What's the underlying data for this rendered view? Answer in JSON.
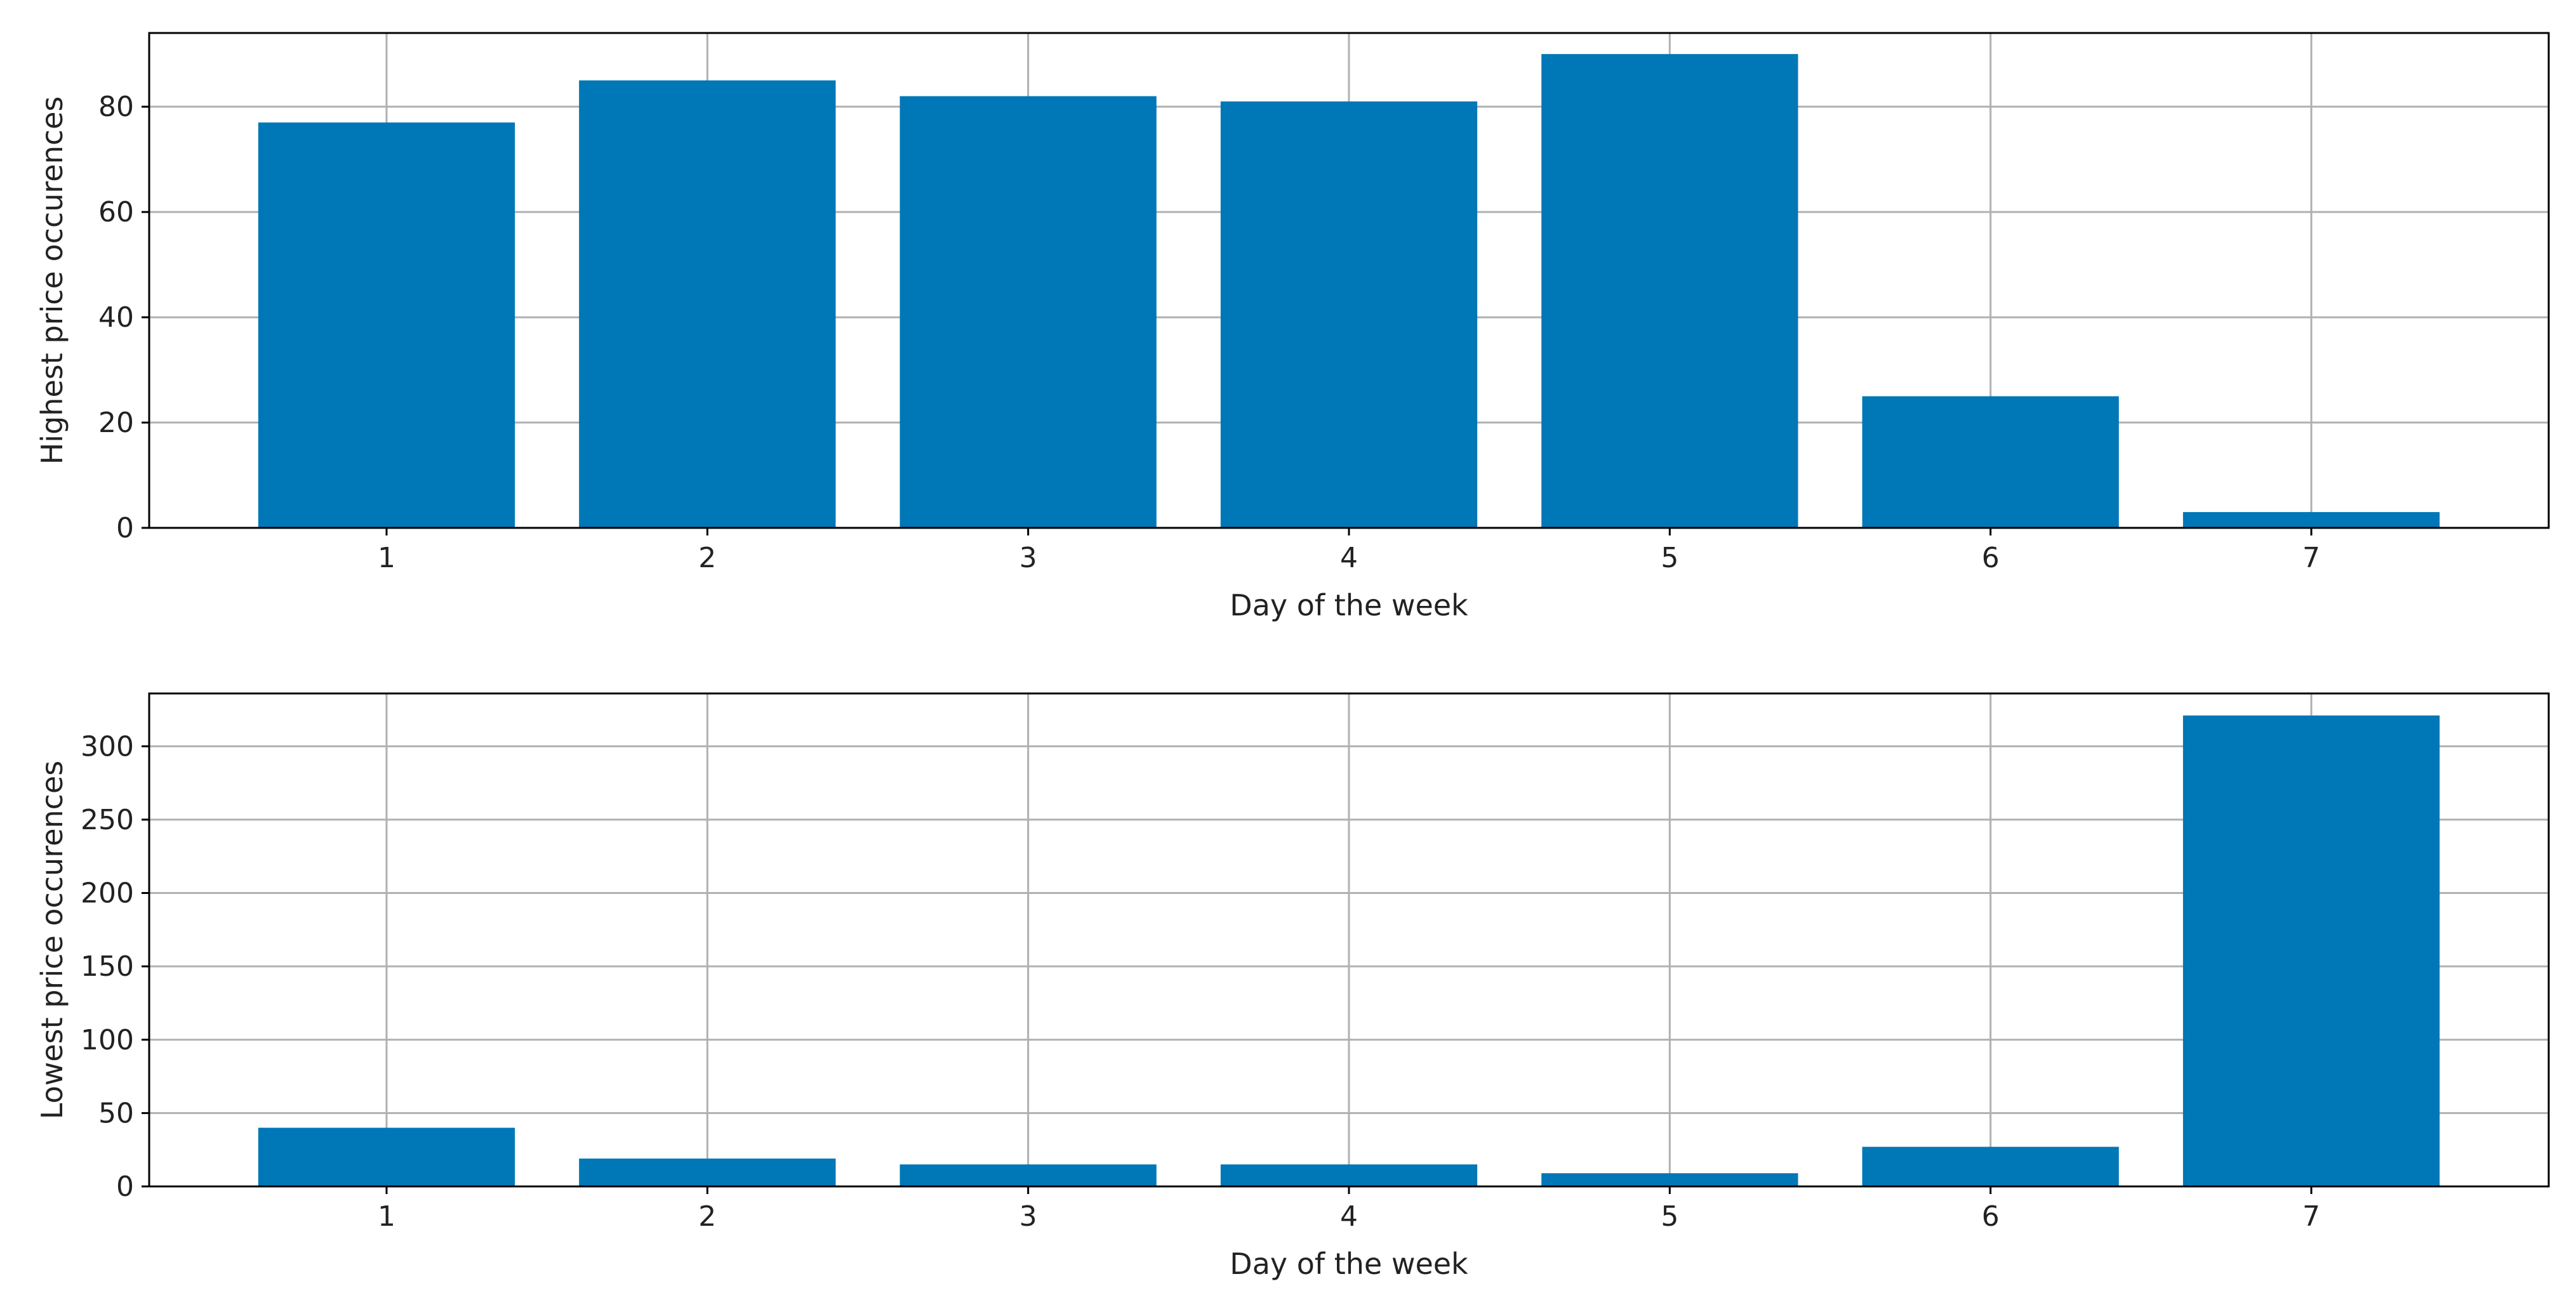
{
  "chart_data": [
    {
      "type": "bar",
      "categories": [
        "1",
        "2",
        "3",
        "4",
        "5",
        "6",
        "7"
      ],
      "values": [
        77,
        85,
        82,
        81,
        90,
        25,
        3
      ],
      "xlabel": "Day of the week",
      "ylabel": "Highest price occurences",
      "ylim": [
        0,
        94
      ],
      "yticks": [
        0,
        20,
        40,
        60,
        80
      ],
      "grid": true,
      "bar_color": "#0077b6"
    },
    {
      "type": "bar",
      "categories": [
        "1",
        "2",
        "3",
        "4",
        "5",
        "6",
        "7"
      ],
      "values": [
        40,
        19,
        15,
        15,
        9,
        27,
        321
      ],
      "xlabel": "Day of the week",
      "ylabel": "Lowest price occurences",
      "ylim": [
        0,
        336
      ],
      "yticks": [
        0,
        50,
        100,
        150,
        200,
        250,
        300
      ],
      "grid": true,
      "bar_color": "#0077b6"
    }
  ]
}
